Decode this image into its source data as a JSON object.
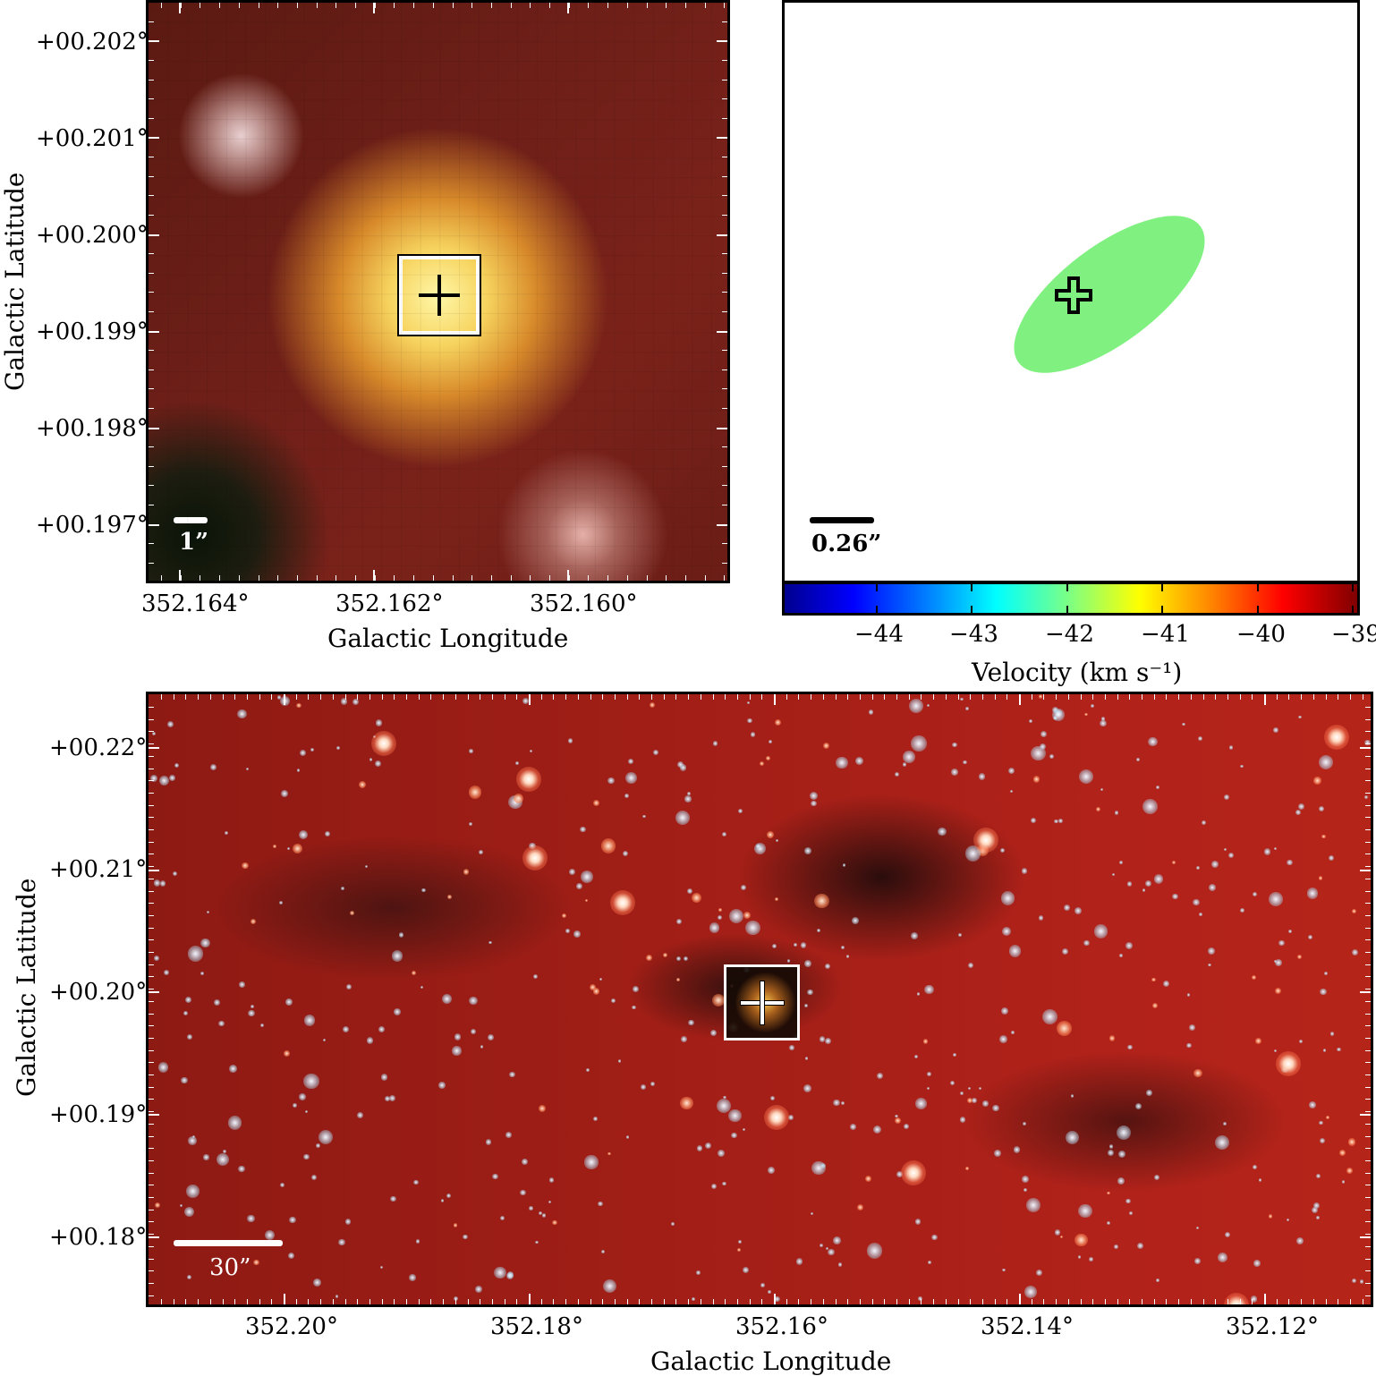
{
  "top_left_panel": {
    "y_ticks": [
      "+00.202°",
      "+00.201°",
      "+00.200°",
      "+00.199°",
      "+00.198°",
      "+00.197°"
    ],
    "x_ticks": [
      "352.164°",
      "352.162°",
      "352.160°"
    ],
    "xlabel": "Galactic Longitude",
    "ylabel": "Galactic Latitude",
    "scale_label": "1”"
  },
  "top_right_panel": {
    "scale_label": "0.26”",
    "colorbar_ticks": [
      "−44",
      "−43",
      "−42",
      "−41",
      "−40",
      "−39"
    ],
    "colorbar_label": "Velocity (km s⁻¹)",
    "ellipse_color": "#80f080"
  },
  "bottom_panel": {
    "y_ticks": [
      "+00.22°",
      "+00.21°",
      "+00.20°",
      "+00.19°",
      "+00.18°"
    ],
    "x_ticks": [
      "352.20°",
      "352.18°",
      "352.16°",
      "352.14°",
      "352.12°"
    ],
    "xlabel": "Galactic Longitude",
    "ylabel": "Galactic Latitude",
    "scale_label": "30”"
  }
}
